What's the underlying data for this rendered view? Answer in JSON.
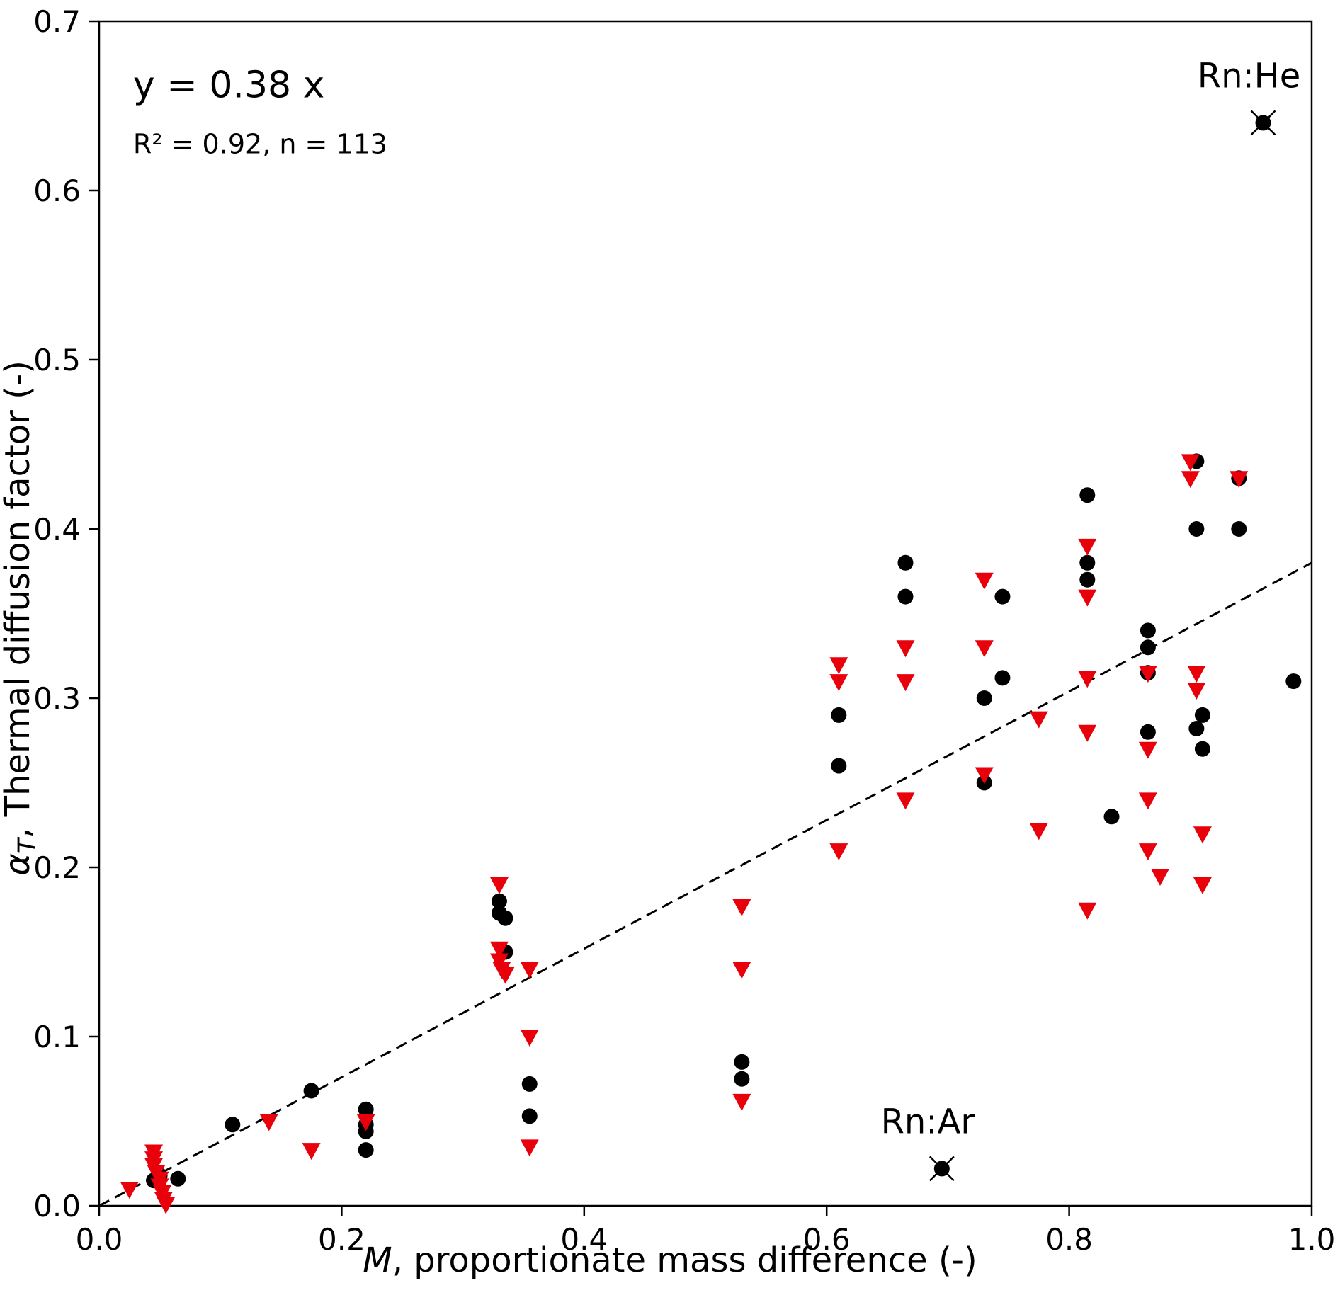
{
  "figure": {
    "annotation_line1": "y = 0.38 x",
    "annotation_line2": "R² = 0.92, n = 113",
    "xlabel_italic": "M",
    "xlabel_rest": ", proportionate mass difference (-)",
    "ylabel_italic": "α",
    "ylabel_sub": "T",
    "ylabel_rest": ", Thermal diffusion factor (-)"
  },
  "chart_data": {
    "type": "scatter",
    "title": "",
    "xlabel": "M, proportionate mass difference (-)",
    "ylabel": "alpha_T, Thermal diffusion factor (-)",
    "xlim": [
      0.0,
      1.0
    ],
    "ylim": [
      0.0,
      0.7
    ],
    "xticks": [
      0.0,
      0.2,
      0.4,
      0.6,
      0.8,
      1.0
    ],
    "xtick_labels": [
      "0.0",
      "0.2",
      "0.4",
      "0.6",
      "0.8",
      "1.0"
    ],
    "yticks": [
      0.0,
      0.1,
      0.2,
      0.3,
      0.4,
      0.5,
      0.6,
      0.7
    ],
    "ytick_labels": [
      "0.0",
      "0.1",
      "0.2",
      "0.3",
      "0.4",
      "0.5",
      "0.6",
      "0.7"
    ],
    "grid": false,
    "legend": "none",
    "trend_line": {
      "equation": "y = 0.38 x",
      "slope": 0.38,
      "intercept": 0.0,
      "r_squared": 0.92,
      "n": 113,
      "style": "dashed",
      "color": "#000000",
      "x_range": [
        0.0,
        1.0
      ]
    },
    "series": [
      {
        "name": "black-circles",
        "marker": "circle",
        "color": "#000000",
        "points": [
          [
            0.045,
            0.015
          ],
          [
            0.05,
            0.018
          ],
          [
            0.065,
            0.016
          ],
          [
            0.11,
            0.048
          ],
          [
            0.175,
            0.068
          ],
          [
            0.22,
            0.057
          ],
          [
            0.22,
            0.048
          ],
          [
            0.22,
            0.044
          ],
          [
            0.22,
            0.033
          ],
          [
            0.33,
            0.18
          ],
          [
            0.33,
            0.173
          ],
          [
            0.335,
            0.17
          ],
          [
            0.335,
            0.15
          ],
          [
            0.355,
            0.072
          ],
          [
            0.355,
            0.053
          ],
          [
            0.53,
            0.085
          ],
          [
            0.53,
            0.075
          ],
          [
            0.61,
            0.29
          ],
          [
            0.61,
            0.26
          ],
          [
            0.665,
            0.38
          ],
          [
            0.665,
            0.36
          ],
          [
            0.73,
            0.3
          ],
          [
            0.73,
            0.25
          ],
          [
            0.745,
            0.36
          ],
          [
            0.745,
            0.312
          ],
          [
            0.815,
            0.42
          ],
          [
            0.815,
            0.38
          ],
          [
            0.815,
            0.37
          ],
          [
            0.835,
            0.23
          ],
          [
            0.865,
            0.34
          ],
          [
            0.865,
            0.33
          ],
          [
            0.865,
            0.315
          ],
          [
            0.865,
            0.28
          ],
          [
            0.905,
            0.44
          ],
          [
            0.905,
            0.4
          ],
          [
            0.905,
            0.282
          ],
          [
            0.91,
            0.29
          ],
          [
            0.91,
            0.27
          ],
          [
            0.94,
            0.43
          ],
          [
            0.94,
            0.4
          ],
          [
            0.985,
            0.31
          ]
        ]
      },
      {
        "name": "red-triangles",
        "marker": "triangle-down",
        "color": "#e8000b",
        "points": [
          [
            0.025,
            0.01
          ],
          [
            0.045,
            0.032
          ],
          [
            0.045,
            0.028
          ],
          [
            0.045,
            0.024
          ],
          [
            0.047,
            0.02
          ],
          [
            0.05,
            0.016
          ],
          [
            0.05,
            0.012
          ],
          [
            0.052,
            0.008
          ],
          [
            0.053,
            0.004
          ],
          [
            0.055,
            0.001
          ],
          [
            0.14,
            0.05
          ],
          [
            0.175,
            0.033
          ],
          [
            0.22,
            0.05
          ],
          [
            0.33,
            0.19
          ],
          [
            0.33,
            0.152
          ],
          [
            0.33,
            0.145
          ],
          [
            0.332,
            0.14
          ],
          [
            0.335,
            0.137
          ],
          [
            0.355,
            0.14
          ],
          [
            0.355,
            0.1
          ],
          [
            0.355,
            0.035
          ],
          [
            0.53,
            0.177
          ],
          [
            0.53,
            0.14
          ],
          [
            0.53,
            0.062
          ],
          [
            0.61,
            0.32
          ],
          [
            0.61,
            0.31
          ],
          [
            0.61,
            0.21
          ],
          [
            0.665,
            0.33
          ],
          [
            0.665,
            0.31
          ],
          [
            0.665,
            0.24
          ],
          [
            0.73,
            0.37
          ],
          [
            0.73,
            0.33
          ],
          [
            0.73,
            0.255
          ],
          [
            0.775,
            0.288
          ],
          [
            0.775,
            0.222
          ],
          [
            0.815,
            0.39
          ],
          [
            0.815,
            0.36
          ],
          [
            0.815,
            0.312
          ],
          [
            0.815,
            0.28
          ],
          [
            0.815,
            0.175
          ],
          [
            0.865,
            0.315
          ],
          [
            0.865,
            0.27
          ],
          [
            0.865,
            0.24
          ],
          [
            0.865,
            0.21
          ],
          [
            0.875,
            0.195
          ],
          [
            0.9,
            0.44
          ],
          [
            0.9,
            0.43
          ],
          [
            0.905,
            0.315
          ],
          [
            0.905,
            0.305
          ],
          [
            0.91,
            0.22
          ],
          [
            0.91,
            0.19
          ],
          [
            0.94,
            0.43
          ]
        ]
      }
    ],
    "labeled_points": [
      {
        "label": "Rn:He",
        "x": 0.96,
        "y": 0.64,
        "marker": "circle-x"
      },
      {
        "label": "Rn:Ar",
        "x": 0.695,
        "y": 0.022,
        "marker": "circle-x"
      }
    ]
  }
}
